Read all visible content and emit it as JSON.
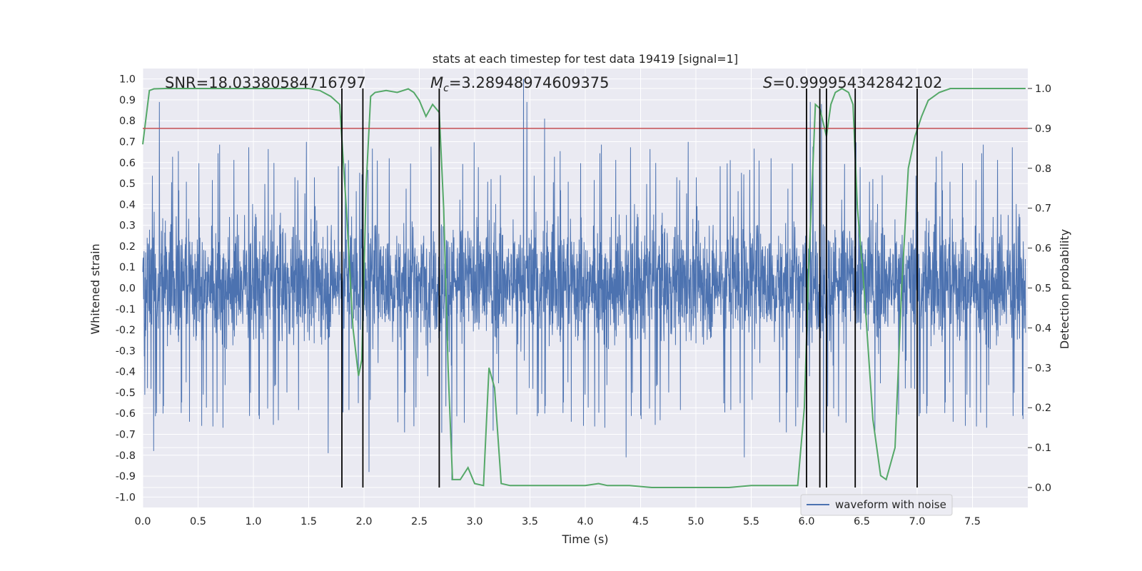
{
  "chart_data": {
    "type": "line",
    "title": "stats at each timestep for test data 19419 [signal=1]",
    "xlabel": "Time (s)",
    "ylabel": "Whitened strain",
    "y2label": "Detection probability",
    "xlim": [
      0,
      8
    ],
    "ylim": [
      -1.05,
      1.05
    ],
    "y2lim": [
      -0.05,
      1.05
    ],
    "xticks": [
      "0.0",
      "0.5",
      "1.0",
      "1.5",
      "2.0",
      "2.5",
      "3.0",
      "3.5",
      "4.0",
      "4.5",
      "5.0",
      "5.5",
      "6.0",
      "6.5",
      "7.0",
      "7.5"
    ],
    "yticks": [
      "-1.0",
      "-0.9",
      "-0.8",
      "-0.7",
      "-0.6",
      "-0.5",
      "-0.4",
      "-0.3",
      "-0.2",
      "-0.1",
      "0.0",
      "0.1",
      "0.2",
      "0.3",
      "0.4",
      "0.5",
      "0.6",
      "0.7",
      "0.8",
      "0.9",
      "1.0"
    ],
    "y2ticks": [
      "0.0",
      "0.1",
      "0.2",
      "0.3",
      "0.4",
      "0.5",
      "0.6",
      "0.7",
      "0.8",
      "0.9",
      "1.0"
    ],
    "annotations": {
      "snr": "SNR=18.03380584716797",
      "mc_symbol": "M",
      "mc_sub": "c",
      "mc_value": "=3.28948974609375",
      "s_symbol": "S",
      "s_value": "=0.999954342842102"
    },
    "legend": {
      "entries": [
        "waveform with noise"
      ],
      "loc": "lower-right"
    },
    "grid": true,
    "threshold": {
      "value": 0.9,
      "axis": "right",
      "color": "#c44e52"
    },
    "vlines": [
      1.8,
      1.99,
      2.68,
      6.0,
      6.12,
      6.18,
      6.44,
      7.0
    ],
    "series": [
      {
        "name": "waveform with noise",
        "axis": "left",
        "color": "#4c72b0",
        "kind": "noise",
        "samples": 3400,
        "typical_band": [
          -0.38,
          0.42
        ],
        "spikes": [
          {
            "x": 0.15,
            "y": 0.89
          },
          {
            "x": 3.45,
            "y": 1.0
          },
          {
            "x": 3.48,
            "y": 0.89
          },
          {
            "x": 3.64,
            "y": 0.81
          },
          {
            "x": 6.05,
            "y": 0.89
          },
          {
            "x": 6.15,
            "y": 0.88
          },
          {
            "x": 0.1,
            "y": -0.78
          },
          {
            "x": 2.05,
            "y": -0.88
          },
          {
            "x": 2.8,
            "y": -0.92
          },
          {
            "x": 4.38,
            "y": -0.81
          },
          {
            "x": 5.45,
            "y": -0.81
          },
          {
            "x": 1.68,
            "y": -0.79
          }
        ]
      },
      {
        "name": "",
        "axis": "right",
        "color": "#55a868",
        "x": [
          0.0,
          0.06,
          0.1,
          0.2,
          0.5,
          1.0,
          1.5,
          1.6,
          1.7,
          1.78,
          1.84,
          1.9,
          1.95,
          1.98,
          2.02,
          2.06,
          2.1,
          2.2,
          2.3,
          2.4,
          2.45,
          2.5,
          2.56,
          2.62,
          2.68,
          2.72,
          2.76,
          2.8,
          2.87,
          2.94,
          3.0,
          3.08,
          3.13,
          3.18,
          3.24,
          3.32,
          3.4,
          3.6,
          3.8,
          4.0,
          4.12,
          4.2,
          4.4,
          4.6,
          5.0,
          5.3,
          5.5,
          5.6,
          5.8,
          5.92,
          5.98,
          6.02,
          6.08,
          6.12,
          6.18,
          6.22,
          6.26,
          6.32,
          6.38,
          6.42,
          6.46,
          6.52,
          6.6,
          6.67,
          6.72,
          6.8,
          6.86,
          6.92,
          6.98,
          7.04,
          7.1,
          7.2,
          7.3,
          7.5,
          7.7,
          7.98
        ],
        "y": [
          0.86,
          0.995,
          0.999,
          1.0,
          1.0,
          1.0,
          1.0,
          0.995,
          0.98,
          0.96,
          0.7,
          0.4,
          0.28,
          0.32,
          0.76,
          0.98,
          0.99,
          0.995,
          0.99,
          0.999,
          0.99,
          0.97,
          0.93,
          0.96,
          0.94,
          0.7,
          0.3,
          0.02,
          0.02,
          0.05,
          0.01,
          0.005,
          0.3,
          0.25,
          0.01,
          0.005,
          0.005,
          0.005,
          0.005,
          0.005,
          0.01,
          0.005,
          0.005,
          0.0,
          0.0,
          0.0,
          0.005,
          0.005,
          0.005,
          0.005,
          0.2,
          0.55,
          0.96,
          0.95,
          0.88,
          0.96,
          0.99,
          1.0,
          0.99,
          0.96,
          0.7,
          0.5,
          0.17,
          0.03,
          0.02,
          0.1,
          0.5,
          0.8,
          0.88,
          0.93,
          0.97,
          0.99,
          1.0,
          1.0,
          1.0,
          1.0
        ]
      }
    ]
  }
}
